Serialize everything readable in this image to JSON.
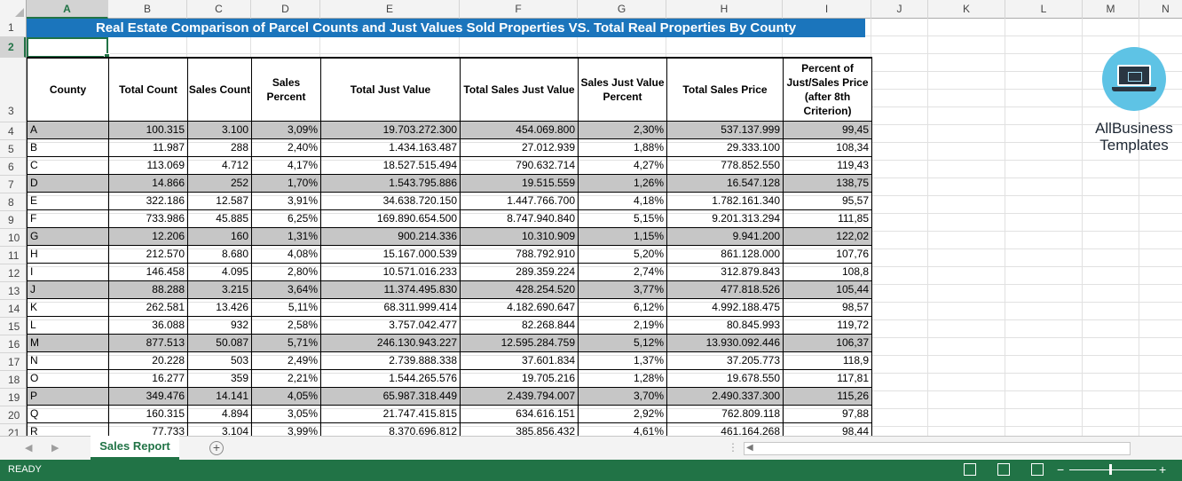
{
  "title": "Real Estate Comparison of Parcel Counts and Just Values Sold Properties VS. Total Real Properties By County",
  "columns": [
    "A",
    "B",
    "C",
    "D",
    "E",
    "F",
    "G",
    "H",
    "I",
    "J",
    "K",
    "L",
    "M",
    "N"
  ],
  "rows": [
    "1",
    "2",
    "3",
    "4",
    "5",
    "6",
    "7",
    "8",
    "9",
    "10",
    "11",
    "12",
    "13",
    "14",
    "15",
    "16",
    "17",
    "18",
    "19",
    "20",
    "21"
  ],
  "headers": {
    "county": "County",
    "total_count": "Total Count",
    "sales_count": "Sales Count",
    "sales_percent": "Sales Percent",
    "total_just_value": "Total Just Value",
    "total_sales_just_value": "Total Sales Just Value",
    "sales_just_value_percent": "Sales Just Value Percent",
    "total_sales_price": "Total Sales Price",
    "percent_just_sales": "Percent of Just/Sales Price (after 8th Criterion)"
  },
  "data": [
    {
      "county": "A",
      "total": "100.315",
      "sales": "3.100",
      "spct": "3,09%",
      "tjv": "19.703.272.300",
      "tsjv": "454.069.800",
      "sjvp": "2,30%",
      "tsp": "537.137.999",
      "pjs": "99,45",
      "grey": true
    },
    {
      "county": "B",
      "total": "11.987",
      "sales": "288",
      "spct": "2,40%",
      "tjv": "1.434.163.487",
      "tsjv": "27.012.939",
      "sjvp": "1,88%",
      "tsp": "29.333.100",
      "pjs": "108,34",
      "grey": false
    },
    {
      "county": "C",
      "total": "113.069",
      "sales": "4.712",
      "spct": "4,17%",
      "tjv": "18.527.515.494",
      "tsjv": "790.632.714",
      "sjvp": "4,27%",
      "tsp": "778.852.550",
      "pjs": "119,43",
      "grey": false
    },
    {
      "county": "D",
      "total": "14.866",
      "sales": "252",
      "spct": "1,70%",
      "tjv": "1.543.795.886",
      "tsjv": "19.515.559",
      "sjvp": "1,26%",
      "tsp": "16.547.128",
      "pjs": "138,75",
      "grey": true
    },
    {
      "county": "E",
      "total": "322.186",
      "sales": "12.587",
      "spct": "3,91%",
      "tjv": "34.638.720.150",
      "tsjv": "1.447.766.700",
      "sjvp": "4,18%",
      "tsp": "1.782.161.340",
      "pjs": "95,57",
      "grey": false
    },
    {
      "county": "F",
      "total": "733.986",
      "sales": "45.885",
      "spct": "6,25%",
      "tjv": "169.890.654.500",
      "tsjv": "8.747.940.840",
      "sjvp": "5,15%",
      "tsp": "9.201.313.294",
      "pjs": "111,85",
      "grey": false
    },
    {
      "county": "G",
      "total": "12.206",
      "sales": "160",
      "spct": "1,31%",
      "tjv": "900.214.336",
      "tsjv": "10.310.909",
      "sjvp": "1,15%",
      "tsp": "9.941.200",
      "pjs": "122,02",
      "grey": true
    },
    {
      "county": "H",
      "total": "212.570",
      "sales": "8.680",
      "spct": "4,08%",
      "tjv": "15.167.000.539",
      "tsjv": "788.792.910",
      "sjvp": "5,20%",
      "tsp": "861.128.000",
      "pjs": "107,76",
      "grey": false
    },
    {
      "county": "I",
      "total": "146.458",
      "sales": "4.095",
      "spct": "2,80%",
      "tjv": "10.571.016.233",
      "tsjv": "289.359.224",
      "sjvp": "2,74%",
      "tsp": "312.879.843",
      "pjs": "108,8",
      "grey": false
    },
    {
      "county": "J",
      "total": "88.288",
      "sales": "3.215",
      "spct": "3,64%",
      "tjv": "11.374.495.830",
      "tsjv": "428.254.520",
      "sjvp": "3,77%",
      "tsp": "477.818.526",
      "pjs": "105,44",
      "grey": true
    },
    {
      "county": "K",
      "total": "262.581",
      "sales": "13.426",
      "spct": "5,11%",
      "tjv": "68.311.999.414",
      "tsjv": "4.182.690.647",
      "sjvp": "6,12%",
      "tsp": "4.992.188.475",
      "pjs": "98,57",
      "grey": false
    },
    {
      "county": "L",
      "total": "36.088",
      "sales": "932",
      "spct": "2,58%",
      "tjv": "3.757.042.477",
      "tsjv": "82.268.844",
      "sjvp": "2,19%",
      "tsp": "80.845.993",
      "pjs": "119,72",
      "grey": false
    },
    {
      "county": "M",
      "total": "877.513",
      "sales": "50.087",
      "spct": "5,71%",
      "tjv": "246.130.943.227",
      "tsjv": "12.595.284.759",
      "sjvp": "5,12%",
      "tsp": "13.930.092.446",
      "pjs": "106,37",
      "grey": true
    },
    {
      "county": "N",
      "total": "20.228",
      "sales": "503",
      "spct": "2,49%",
      "tjv": "2.739.888.338",
      "tsjv": "37.601.834",
      "sjvp": "1,37%",
      "tsp": "37.205.773",
      "pjs": "118,9",
      "grey": false
    },
    {
      "county": "O",
      "total": "16.277",
      "sales": "359",
      "spct": "2,21%",
      "tjv": "1.544.265.576",
      "tsjv": "19.705.216",
      "sjvp": "1,28%",
      "tsp": "19.678.550",
      "pjs": "117,81",
      "grey": false
    },
    {
      "county": "P",
      "total": "349.476",
      "sales": "14.141",
      "spct": "4,05%",
      "tjv": "65.987.318.449",
      "tsjv": "2.439.794.007",
      "sjvp": "3,70%",
      "tsp": "2.490.337.300",
      "pjs": "115,26",
      "grey": true
    },
    {
      "county": "Q",
      "total": "160.315",
      "sales": "4.894",
      "spct": "3,05%",
      "tjv": "21.747.415.815",
      "tsjv": "634.616.151",
      "sjvp": "2,92%",
      "tsp": "762.809.118",
      "pjs": "97,88",
      "grey": false
    },
    {
      "county": "R",
      "total": "77.733",
      "sales": "3.104",
      "spct": "3,99%",
      "tjv": "8.370.696.812",
      "tsjv": "385.856.432",
      "sjvp": "4,61%",
      "tsp": "461.164.268",
      "pjs": "98,44",
      "grey": false
    }
  ],
  "logo": {
    "line1": "AllBusiness",
    "line2": "Templates",
    "icon": "laptop-icon"
  },
  "sheet_tab": "Sales Report",
  "add_sheet": "+",
  "status": "READY",
  "colors": {
    "accent": "#217346",
    "title_bg": "#1b75bc",
    "grey_row": "#c6c6c6"
  }
}
